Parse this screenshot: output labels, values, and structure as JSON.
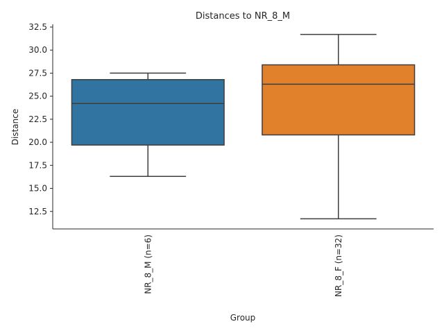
{
  "chart_data": {
    "type": "box",
    "title": "Distances to NR_8_M",
    "xlabel": "Group",
    "ylabel": "Distance",
    "ylim": [
      10.6,
      32.8
    ],
    "yticks": [
      "12.5",
      "15.0",
      "17.5",
      "20.0",
      "22.5",
      "25.0",
      "27.5",
      "30.0",
      "32.5"
    ],
    "grid": false,
    "categories": [
      "NR_8_M (n=6)",
      "NR_8_F (n=32)"
    ],
    "boxes": [
      {
        "name": "NR_8_M (n=6)",
        "whisker_low": 16.3,
        "q1": 19.7,
        "median": 24.2,
        "q3": 26.8,
        "whisker_high": 27.5,
        "color": "#3274a1"
      },
      {
        "name": "NR_8_F (n=32)",
        "whisker_low": 11.7,
        "q1": 20.8,
        "median": 26.3,
        "q3": 28.4,
        "whisker_high": 31.7,
        "color": "#e1812c"
      }
    ]
  }
}
